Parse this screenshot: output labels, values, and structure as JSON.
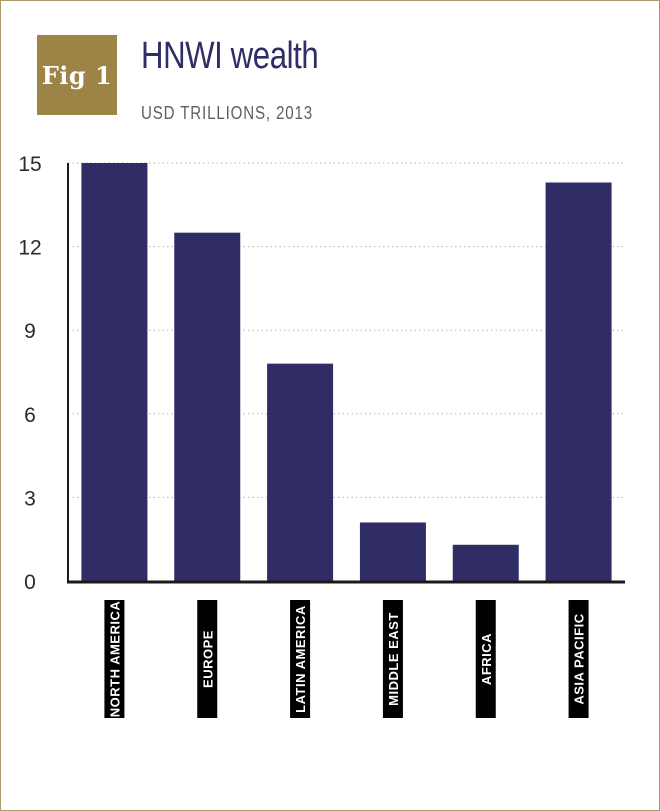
{
  "figure": {
    "badge": "Fig 1"
  },
  "colors": {
    "bar": "#2f2c66",
    "badge": "#9b8446",
    "frame": "#a99a6d",
    "label_box": "#000000"
  },
  "chart_data": {
    "type": "bar",
    "title": "HNWI wealth",
    "subtitle": "USD TRILLIONS, 2013",
    "categories": [
      "NORTH AMERICA",
      "EUROPE",
      "LATIN AMERICA",
      "MIDDLE EAST",
      "AFRICA",
      "ASIA PACIFIC"
    ],
    "values": [
      15.0,
      12.5,
      7.8,
      2.1,
      1.3,
      14.3
    ],
    "ylim": [
      0,
      15
    ],
    "yticks": [
      0,
      3,
      6,
      9,
      12,
      15
    ],
    "xlabel": "",
    "ylabel": "",
    "grid": true,
    "legend": "none"
  }
}
